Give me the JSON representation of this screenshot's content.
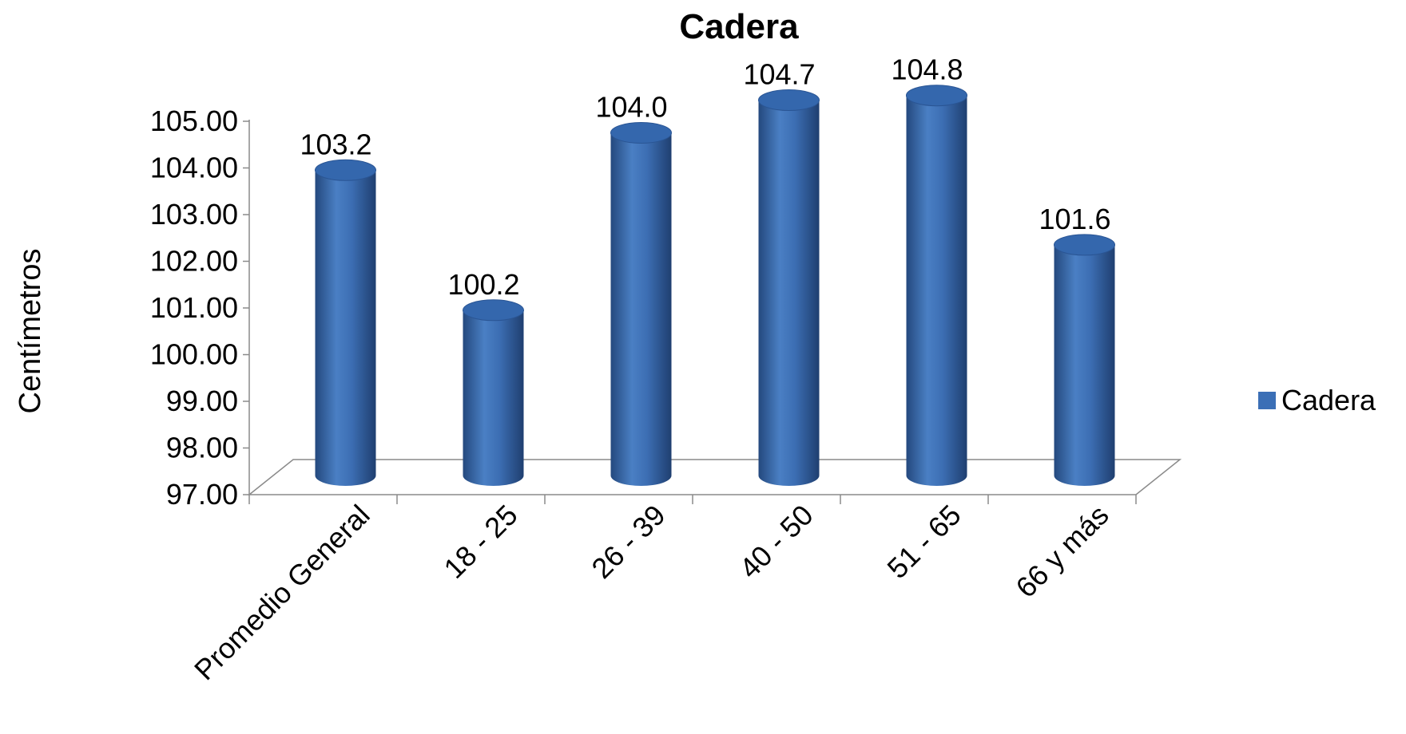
{
  "chart_data": {
    "type": "bar",
    "title": "Cadera",
    "xlabel": "",
    "ylabel": "Centímetros",
    "categories": [
      "Promedio General",
      "18 - 25",
      "26 - 39",
      "40 - 50",
      "51 - 65",
      "66 y más"
    ],
    "series": [
      {
        "name": "Cadera",
        "values": [
          103.2,
          100.2,
          104.0,
          104.7,
          104.8,
          101.6
        ],
        "labels": [
          "103.2",
          "100.2",
          "104.0",
          "104.7",
          "104.8",
          "101.6"
        ],
        "color": "#3B6FB6"
      }
    ],
    "ylim": [
      97,
      105
    ],
    "yticks": [
      "97.00",
      "98.00",
      "99.00",
      "100.00",
      "101.00",
      "102.00",
      "103.00",
      "104.00",
      "105.00"
    ],
    "legend": "right",
    "grid": false,
    "style": "3d-cylinder"
  }
}
